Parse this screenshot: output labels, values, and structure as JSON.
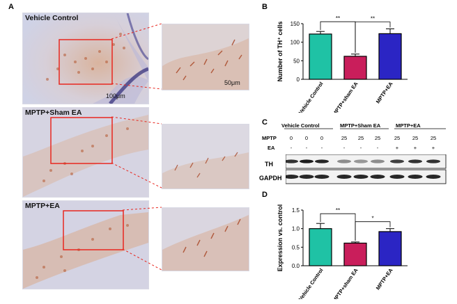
{
  "panel_a": {
    "letter": "A",
    "rows": [
      {
        "label": "Vehicle Control"
      },
      {
        "label": "MPTP+Sham EA"
      },
      {
        "label": "MPTP+EA"
      }
    ],
    "scale_large": "100μm",
    "scale_small": "50μm"
  },
  "panel_b": {
    "letter": "B"
  },
  "panel_c": {
    "letter": "C",
    "groups": [
      "Vehicle Control",
      "MPTP+Sham EA",
      "MPTP+EA"
    ],
    "row_mptp_label": "MPTP",
    "row_ea_label": "EA",
    "mptp_values": [
      "0",
      "0",
      "0",
      "25",
      "25",
      "25",
      "25",
      "25",
      "25"
    ],
    "ea_values": [
      "-",
      "-",
      "-",
      "-",
      "-",
      "-",
      "+",
      "+",
      "+"
    ],
    "band_th": "TH",
    "band_gapdh": "GAPDH"
  },
  "panel_d": {
    "letter": "D"
  },
  "colors": {
    "vehicle": "#1fc2a5",
    "sham": "#c91e5b",
    "ea": "#2b25c4",
    "box": "#e8271f"
  },
  "chart_data": [
    {
      "id": "B",
      "type": "bar",
      "categories": [
        "Vehicle Control",
        "MPTP+sham EA",
        "MPTP+EA"
      ],
      "values": [
        122,
        62,
        123
      ],
      "errors": [
        7,
        6,
        13
      ],
      "ylabel": "Number of TH⁺ cells",
      "ylim": [
        0,
        150
      ],
      "yticks": [
        "0",
        "50",
        "100",
        "150"
      ],
      "significance": [
        {
          "from": 0,
          "to": 1,
          "label": "**"
        },
        {
          "from": 1,
          "to": 2,
          "label": "**"
        }
      ]
    },
    {
      "id": "D",
      "type": "bar",
      "categories": [
        "Vehicle Control",
        "MPTP+sham EA",
        "MPTP+EA"
      ],
      "values": [
        1.0,
        0.61,
        0.92
      ],
      "errors": [
        0.14,
        0.03,
        0.08
      ],
      "ylabel": "Expression vs. control",
      "ylim": [
        0,
        1.5
      ],
      "yticks": [
        "0.0",
        "0.5",
        "1.0",
        "1.5"
      ],
      "significance": [
        {
          "from": 0,
          "to": 1,
          "label": "**"
        },
        {
          "from": 1,
          "to": 2,
          "label": "*"
        }
      ]
    }
  ]
}
